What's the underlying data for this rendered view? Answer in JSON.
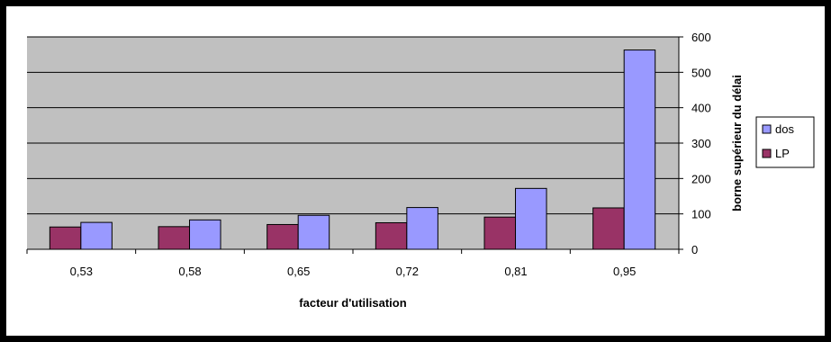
{
  "chart_data": {
    "type": "bar",
    "title": "",
    "xlabel": "facteur d'utilisation",
    "ylabel": "borne supérieur du délai",
    "categories": [
      "0,53",
      "0,58",
      "0,65",
      "0,72",
      "0,81",
      "0,95"
    ],
    "series": [
      {
        "name": "LP",
        "values": [
          63,
          64,
          70,
          75,
          91,
          117
        ],
        "color": "#993366"
      },
      {
        "name": "dos",
        "values": [
          76,
          83,
          96,
          118,
          172,
          563
        ],
        "color": "#9999FF"
      }
    ],
    "ylim": [
      0,
      600
    ],
    "yticks": [
      "0",
      "100",
      "200",
      "300",
      "400",
      "500",
      "600"
    ],
    "y_axis_side": "right",
    "grid": true,
    "legend": {
      "position": "right",
      "entries": [
        "dos",
        "LP"
      ]
    },
    "plot_background": "#C0C0C0"
  }
}
